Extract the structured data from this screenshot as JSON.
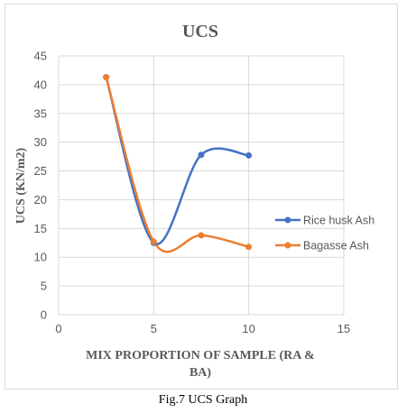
{
  "caption": "Fig.7 UCS Graph",
  "chart_data": {
    "type": "line",
    "title": "UCS",
    "xlabel": "MIX PROPORTION OF SAMPLE (RA & BA)",
    "xlabel_lines": [
      "MIX PROPORTION OF SAMPLE (RA &",
      "BA)"
    ],
    "ylabel": "UCS (KN/m2)",
    "xlim": [
      0,
      15
    ],
    "ylim": [
      0,
      45
    ],
    "xticks": [
      0,
      5,
      10,
      15
    ],
    "yticks": [
      0,
      5,
      10,
      15,
      20,
      25,
      30,
      35,
      40,
      45
    ],
    "grid": true,
    "smooth": true,
    "legend_position": "right",
    "series": [
      {
        "name": "Rice husk Ash",
        "color": "#4472c4",
        "x": [
          2.5,
          5,
          7.5,
          10
        ],
        "y": [
          41.3,
          12.5,
          27.8,
          27.7
        ]
      },
      {
        "name": "Bagasse Ash",
        "color": "#ed7d31",
        "x": [
          2.5,
          5,
          7.5,
          10
        ],
        "y": [
          41.3,
          12.7,
          13.8,
          11.8
        ]
      }
    ]
  }
}
